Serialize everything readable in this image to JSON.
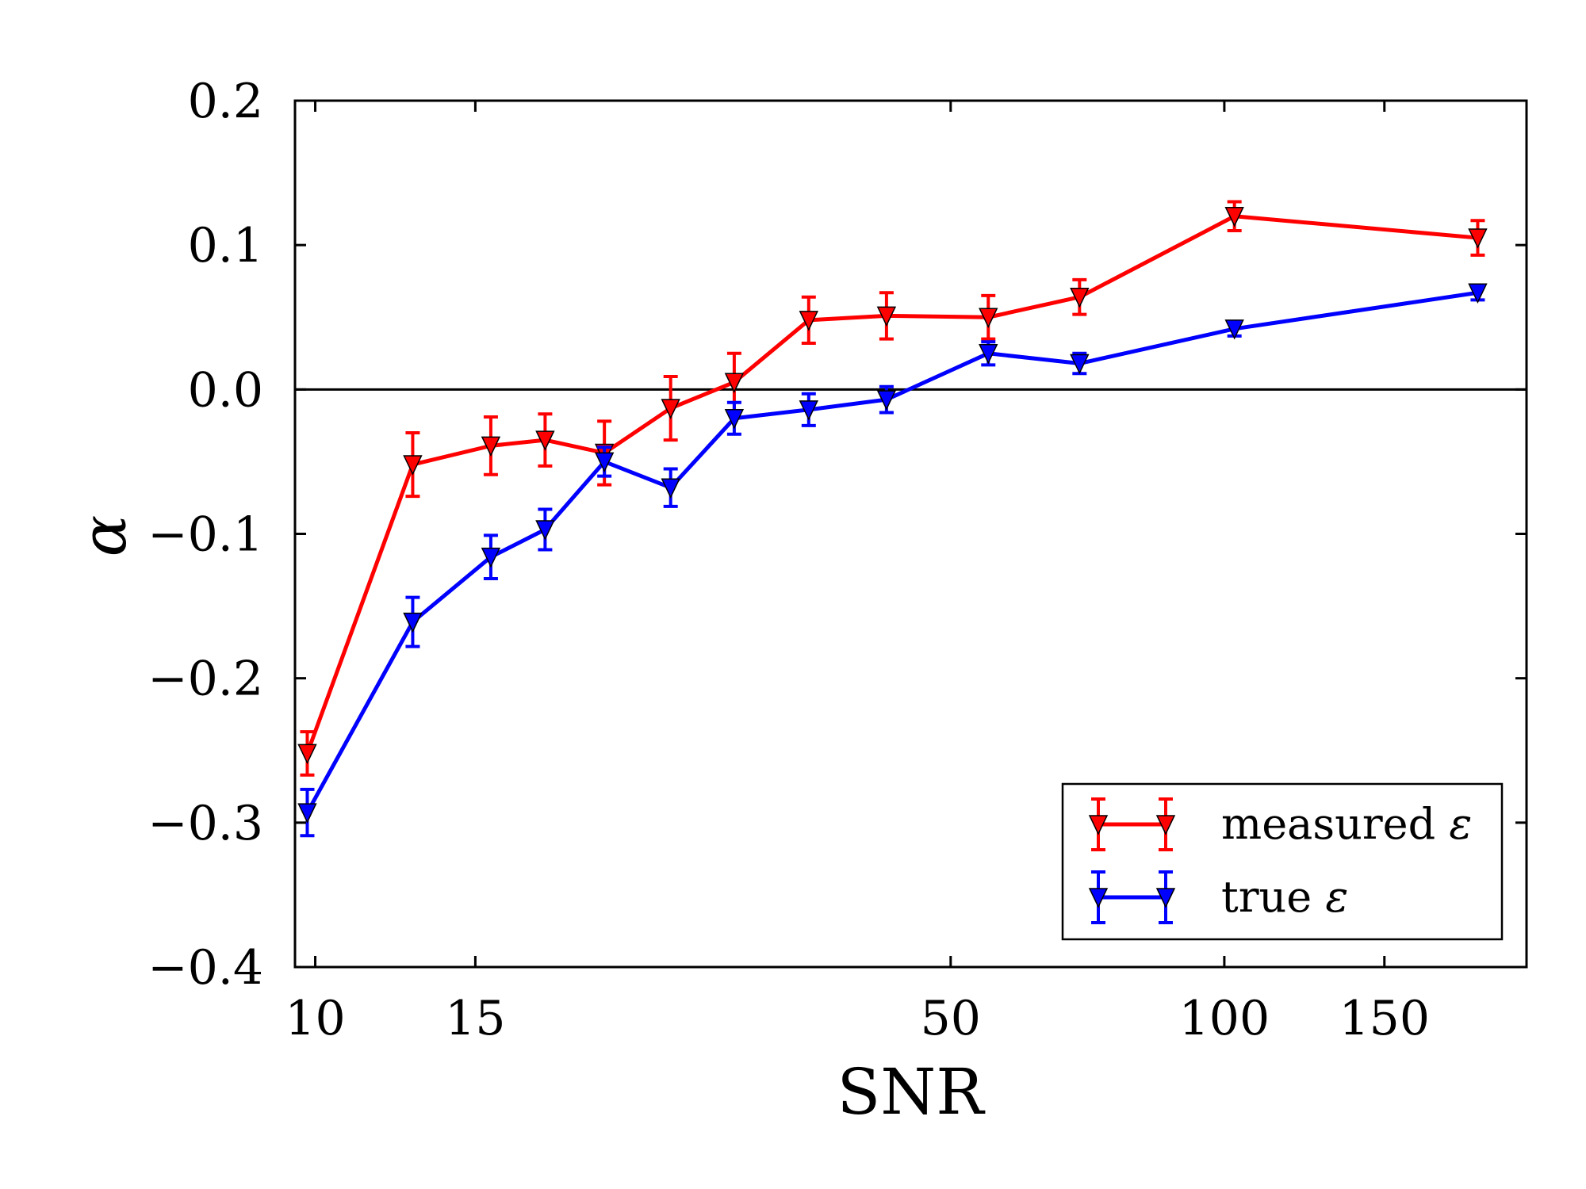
{
  "chart_data": {
    "type": "line",
    "title": "",
    "xlabel": "SNR",
    "ylabel": "α",
    "xscale": "log",
    "xlim": [
      9.5,
      215
    ],
    "ylim": [
      -0.4,
      0.2
    ],
    "xticks": [
      {
        "value": 10,
        "label": "10"
      },
      {
        "value": 15,
        "label": "15"
      },
      {
        "value": 50,
        "label": "50"
      },
      {
        "value": 100,
        "label": "100"
      },
      {
        "value": 150,
        "label": "150"
      }
    ],
    "yticks": [
      {
        "value": 0.2,
        "label": "0.2"
      },
      {
        "value": 0.1,
        "label": "0.1"
      },
      {
        "value": 0.0,
        "label": "0.0"
      },
      {
        "value": -0.1,
        "label": "−0.1"
      },
      {
        "value": -0.2,
        "label": "−0.2"
      },
      {
        "value": -0.3,
        "label": "−0.3"
      },
      {
        "value": -0.4,
        "label": "−0.4"
      }
    ],
    "reference_line": {
      "y": 0.0,
      "color": "#000000"
    },
    "legend_position": "lower-right",
    "series": [
      {
        "name": "measured ε",
        "legend_label": "measured",
        "color": "#ff0000",
        "marker": "down-triangle",
        "x": [
          9.8,
          12.8,
          15.6,
          17.9,
          20.8,
          24.6,
          28.9,
          34.9,
          42.5,
          55.0,
          69.3,
          102.6,
          190.0
        ],
        "y": [
          -0.252,
          -0.052,
          -0.039,
          -0.035,
          -0.044,
          -0.013,
          0.005,
          0.048,
          0.051,
          0.05,
          0.064,
          0.12,
          0.105
        ],
        "yerr": [
          0.015,
          0.022,
          0.02,
          0.018,
          0.022,
          0.022,
          0.02,
          0.016,
          0.016,
          0.015,
          0.012,
          0.01,
          0.012
        ]
      },
      {
        "name": "true ε",
        "legend_label": "true",
        "color": "#0000ff",
        "marker": "down-triangle",
        "x": [
          9.8,
          12.8,
          15.6,
          17.9,
          20.8,
          24.6,
          28.9,
          34.9,
          42.5,
          55.0,
          69.3,
          102.6,
          190.0
        ],
        "y": [
          -0.293,
          -0.161,
          -0.116,
          -0.097,
          -0.05,
          -0.068,
          -0.02,
          -0.014,
          -0.007,
          0.025,
          0.018,
          0.042,
          0.067
        ],
        "yerr": [
          0.016,
          0.017,
          0.015,
          0.014,
          0.01,
          0.013,
          0.011,
          0.011,
          0.009,
          0.008,
          0.007,
          0.005,
          0.005
        ]
      }
    ],
    "legend_symbol": "ε"
  }
}
